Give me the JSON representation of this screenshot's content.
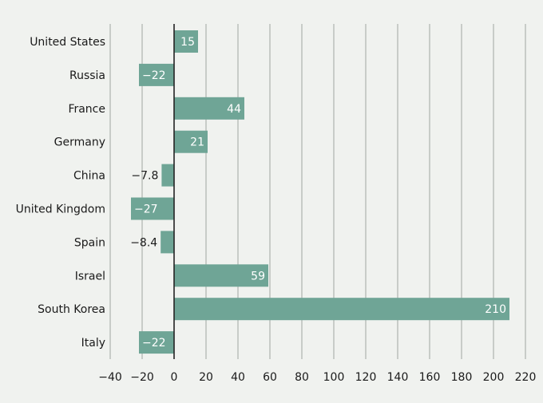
{
  "chart_data": {
    "type": "bar",
    "orientation": "horizontal",
    "categories": [
      "United States",
      "Russia",
      "France",
      "Germany",
      "China",
      "United Kingdom",
      "Spain",
      "Israel",
      "South Korea",
      "Italy"
    ],
    "values": [
      15,
      -22,
      44,
      21,
      -7.8,
      -27,
      -8.4,
      59,
      210,
      -22
    ],
    "value_labels": [
      "15",
      "−22",
      "44",
      "21",
      "−7.8",
      "−27",
      "−8.4",
      "59",
      "210",
      "−22"
    ],
    "x_ticks": [
      -40,
      -20,
      0,
      20,
      40,
      60,
      80,
      100,
      120,
      140,
      160,
      180,
      200,
      220
    ],
    "x_tick_labels": [
      "−40",
      "−20",
      "0",
      "20",
      "40",
      "60",
      "80",
      "100",
      "120",
      "140",
      "160",
      "180",
      "200",
      "220"
    ],
    "xlim": [
      -40,
      220
    ],
    "grid": "vertical",
    "title": "",
    "xlabel": "",
    "ylabel": ""
  },
  "colors": {
    "bar": "#6fa596",
    "background": "#f0f2ef",
    "grid": "#c8ccc8",
    "zero_line": "#222222",
    "label_inside": "#ffffff",
    "label_outside": "#1a1a1a"
  }
}
